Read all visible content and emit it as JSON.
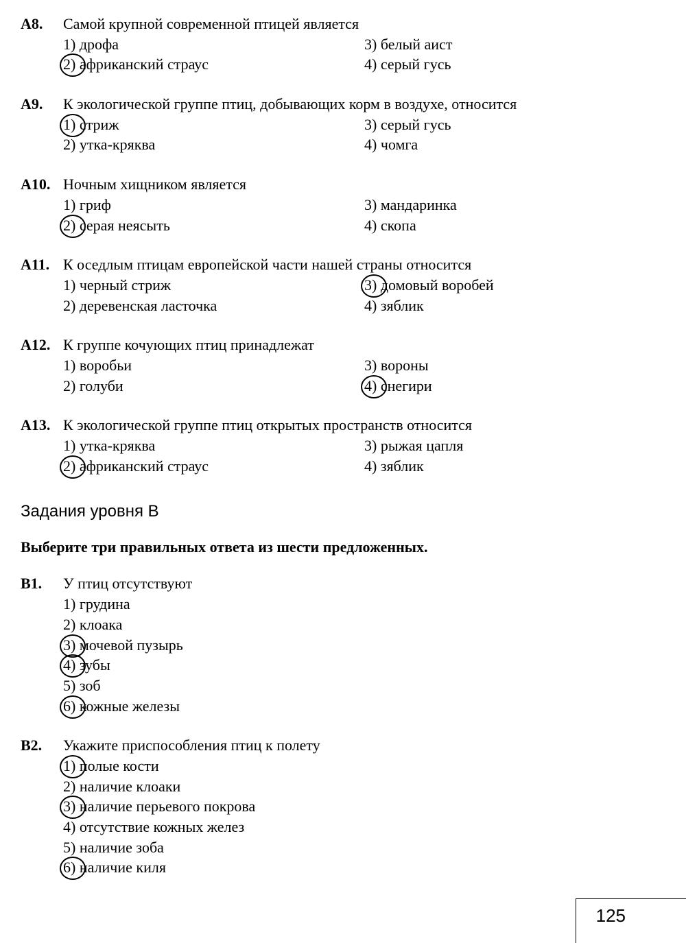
{
  "questions_a": [
    {
      "num": "A8.",
      "text": "Самой крупной современной птицей является",
      "left": [
        {
          "n": "1)",
          "t": "дрофа",
          "circled": false
        },
        {
          "n": "2)",
          "t": "африканский страус",
          "circled": true
        }
      ],
      "right": [
        {
          "n": "3)",
          "t": "белый аист",
          "circled": false
        },
        {
          "n": "4)",
          "t": "серый гусь",
          "circled": false
        }
      ]
    },
    {
      "num": "A9.",
      "text": "К экологической группе птиц, добывающих корм в возду­хе, относится",
      "left": [
        {
          "n": "1)",
          "t": "стриж",
          "circled": true
        },
        {
          "n": "2)",
          "t": "утка-кряква",
          "circled": false
        }
      ],
      "right": [
        {
          "n": "3)",
          "t": "серый гусь",
          "circled": false
        },
        {
          "n": "4)",
          "t": "чомга",
          "circled": false
        }
      ]
    },
    {
      "num": "A10.",
      "text": "Ночным хищником является",
      "left": [
        {
          "n": "1)",
          "t": "гриф",
          "circled": false
        },
        {
          "n": "2)",
          "t": "серая неясыть",
          "circled": true
        }
      ],
      "right": [
        {
          "n": "3)",
          "t": "мандаринка",
          "circled": false
        },
        {
          "n": "4)",
          "t": "скопа",
          "circled": false
        }
      ]
    },
    {
      "num": "A11.",
      "text": "К оседлым птицам европейской части нашей страны отно­сится",
      "left": [
        {
          "n": "1)",
          "t": "черный стриж",
          "circled": false
        },
        {
          "n": "2)",
          "t": "деревенская ласточка",
          "circled": false
        }
      ],
      "right": [
        {
          "n": "3)",
          "t": "домовый воробей",
          "circled": true
        },
        {
          "n": "4)",
          "t": "зяблик",
          "circled": false
        }
      ]
    },
    {
      "num": "A12.",
      "text": "К группе кочующих птиц принадлежат",
      "left": [
        {
          "n": "1)",
          "t": "воробьи",
          "circled": false
        },
        {
          "n": "2)",
          "t": "голуби",
          "circled": false
        }
      ],
      "right": [
        {
          "n": "3)",
          "t": "вороны",
          "circled": false
        },
        {
          "n": "4)",
          "t": "снегири",
          "circled": true
        }
      ]
    },
    {
      "num": "A13.",
      "text": "К экологической группе птиц открытых пространств отно­сится",
      "left": [
        {
          "n": "1)",
          "t": "утка-кряква",
          "circled": false
        },
        {
          "n": "2)",
          "t": "африканский страус",
          "circled": true
        }
      ],
      "right": [
        {
          "n": "3)",
          "t": "рыжая цапля",
          "circled": false
        },
        {
          "n": "4)",
          "t": "зяблик",
          "circled": false
        }
      ]
    }
  ],
  "section_b_title": "Задания уровня В",
  "section_b_instr": "Выберите три правильных ответа из шести предложенных.",
  "questions_b": [
    {
      "num": "B1.",
      "text": "У птиц отсутствуют",
      "opts": [
        {
          "n": "1)",
          "t": "грудина",
          "circled": false
        },
        {
          "n": "2)",
          "t": "клоака",
          "circled": false
        },
        {
          "n": "3)",
          "t": "мочевой пузырь",
          "circled": true
        },
        {
          "n": "4)",
          "t": "зубы",
          "circled": true
        },
        {
          "n": "5)",
          "t": "зоб",
          "circled": false
        },
        {
          "n": "6)",
          "t": "кожные железы",
          "circled": true
        }
      ]
    },
    {
      "num": "B2.",
      "text": "Укажите приспособления птиц к полету",
      "opts": [
        {
          "n": "1)",
          "t": "полые кости",
          "circled": true
        },
        {
          "n": "2)",
          "t": "наличие клоаки",
          "circled": false
        },
        {
          "n": "3)",
          "t": "наличие перьевого покрова",
          "circled": true
        },
        {
          "n": "4)",
          "t": "отсутствие кожных желез",
          "circled": false
        },
        {
          "n": "5)",
          "t": "наличие зоба",
          "circled": false
        },
        {
          "n": "6)",
          "t": "наличие киля",
          "circled": true
        }
      ]
    }
  ],
  "page_number": "125"
}
